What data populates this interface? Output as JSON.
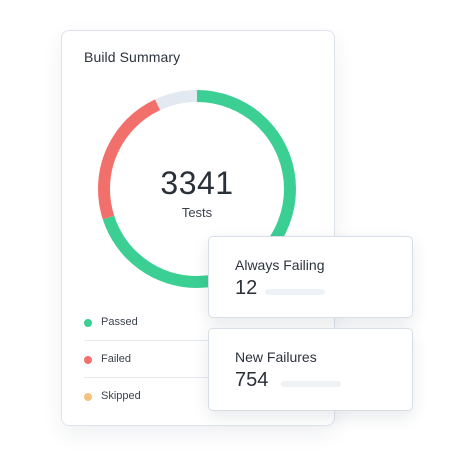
{
  "summary": {
    "title": "Build Summary",
    "total": "3341",
    "total_label": "Tests"
  },
  "colors": {
    "passed": "#3ccf93",
    "failed": "#f2706c",
    "skipped": "#e3e9f1",
    "skipped_legend": "#f5c27e"
  },
  "chart_data": {
    "type": "pie",
    "title": "",
    "categories": [
      "Passed",
      "Failed",
      "Skipped"
    ],
    "values": [
      0.7,
      0.23,
      0.07
    ],
    "center_value": 3341,
    "center_label": "Tests"
  },
  "legend": {
    "items": [
      {
        "label": "Passed",
        "color": "#3ccf93"
      },
      {
        "label": "Failed",
        "color": "#f2706c"
      },
      {
        "label": "Skipped",
        "color": "#f5c27e"
      }
    ]
  },
  "stats": {
    "always_failing": {
      "title": "Always Failing",
      "value": "12"
    },
    "new_failures": {
      "title": "New Failures",
      "value": "754"
    }
  }
}
